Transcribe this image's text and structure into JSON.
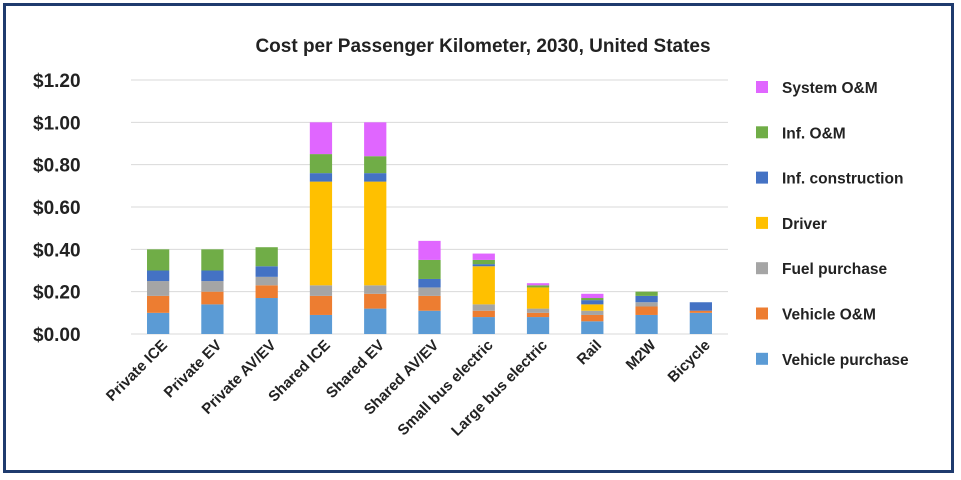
{
  "chart_data": {
    "type": "bar",
    "stacked": true,
    "title": "Cost per Passenger Kilometer, 2030, United States",
    "xlabel": "",
    "ylabel": "",
    "ylim": [
      0,
      1.2
    ],
    "yticks": [
      "$0.00",
      "$0.20",
      "$0.40",
      "$0.60",
      "$0.80",
      "$1.00",
      "$1.20"
    ],
    "ytick_values": [
      0,
      0.2,
      0.4,
      0.6,
      0.8,
      1.0,
      1.2
    ],
    "grid": true,
    "legend_position": "right",
    "categories": [
      "Private ICE",
      "Private EV",
      "Private AV/EV",
      "Shared ICE",
      "Shared EV",
      "Shared AV/EV",
      "Small bus electric",
      "Large bus electric",
      "Rail",
      "M2W",
      "Bicycle"
    ],
    "series": [
      {
        "name": "Vehicle purchase",
        "color": "#5b9bd5",
        "values": [
          0.1,
          0.14,
          0.17,
          0.09,
          0.12,
          0.11,
          0.08,
          0.08,
          0.06,
          0.09,
          0.1
        ]
      },
      {
        "name": "Vehicle O&M",
        "color": "#ed7d31",
        "values": [
          0.08,
          0.06,
          0.06,
          0.09,
          0.07,
          0.07,
          0.03,
          0.02,
          0.03,
          0.04,
          0.01
        ]
      },
      {
        "name": "Fuel purchase",
        "color": "#a5a5a5",
        "values": [
          0.07,
          0.05,
          0.04,
          0.05,
          0.04,
          0.04,
          0.03,
          0.02,
          0.02,
          0.02,
          0.0
        ]
      },
      {
        "name": "Driver",
        "color": "#ffc000",
        "values": [
          0.0,
          0.0,
          0.0,
          0.49,
          0.49,
          0.0,
          0.18,
          0.1,
          0.03,
          0.0,
          0.0
        ]
      },
      {
        "name": "Inf. construction",
        "color": "#4472c4",
        "values": [
          0.05,
          0.05,
          0.05,
          0.04,
          0.04,
          0.04,
          0.01,
          0.0,
          0.02,
          0.03,
          0.04
        ]
      },
      {
        "name": "Inf. O&M",
        "color": "#70ad47",
        "values": [
          0.1,
          0.1,
          0.09,
          0.09,
          0.08,
          0.09,
          0.02,
          0.01,
          0.01,
          0.02,
          0.0
        ]
      },
      {
        "name": "System O&M",
        "color": "#e066ff",
        "values": [
          0.0,
          0.0,
          0.0,
          0.15,
          0.16,
          0.09,
          0.03,
          0.01,
          0.02,
          0.0,
          0.0
        ]
      }
    ],
    "legend_order": [
      "System O&M",
      "Inf. O&M",
      "Inf. construction",
      "Driver",
      "Fuel purchase",
      "Vehicle O&M",
      "Vehicle purchase"
    ]
  }
}
